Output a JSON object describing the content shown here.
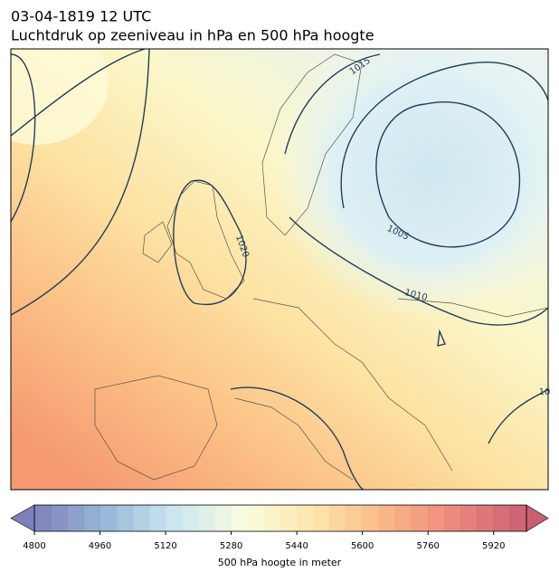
{
  "title": "03-04-1819 12 UTC",
  "subtitle": "Luchtdruk op zeeniveau in hPa en 500 hPa hoogte",
  "map": {
    "contour_labels": [
      "1015",
      "1020",
      "1005",
      "1010",
      "10"
    ]
  },
  "colorbar": {
    "label": "500 hPa hoogte in meter",
    "lim": [
      4800,
      6000
    ],
    "step": 40,
    "ticks": [
      4800,
      4960,
      5120,
      5280,
      5440,
      5600,
      5760,
      5920
    ],
    "colors": [
      "#5e62a8",
      "#7fa6cd",
      "#bfe0ef",
      "#f7fbd6",
      "#fedf95",
      "#f9a46a",
      "#e76a5e",
      "#be3850"
    ]
  }
}
